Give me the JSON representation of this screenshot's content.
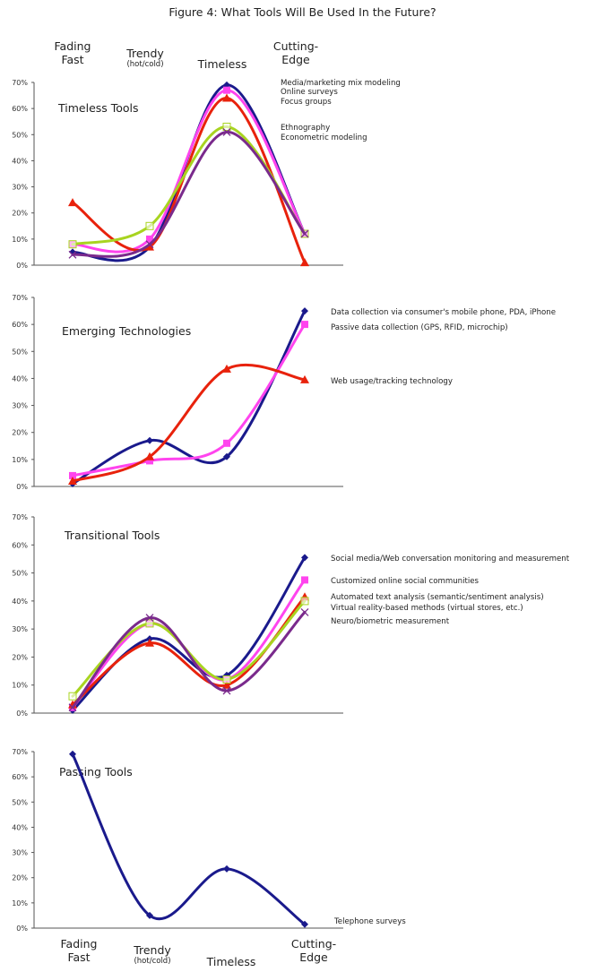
{
  "figure_title": "Figure 4: What Tools Will Be Used In the Future?",
  "categories": [
    {
      "main": "Fading\nFast",
      "sub": ""
    },
    {
      "main": "Trendy",
      "sub": "(hot/cold)"
    },
    {
      "main": "Timeless",
      "sub": ""
    },
    {
      "main": "Cutting-\nEdge",
      "sub": ""
    }
  ],
  "colors": {
    "navy": "#1a1a8c",
    "magenta": "#ff44ee",
    "red": "#e8220c",
    "lime": "#a8d420",
    "purple": "#7a2a8c"
  },
  "chart_data": [
    {
      "type": "line",
      "title": "Timeless Tools",
      "categories": [
        "Fading Fast",
        "Trendy (hot/cold)",
        "Timeless",
        "Cutting-Edge"
      ],
      "ylim": [
        0,
        70
      ],
      "yticks": [
        "0%",
        "10%",
        "20%",
        "30%",
        "40%",
        "50%",
        "60%",
        "70%"
      ],
      "series": [
        {
          "name": "Media/marketing mix modeling",
          "color": "#1a1a8c",
          "marker": "diamond",
          "values": [
            5,
            7,
            69,
            12
          ]
        },
        {
          "name": "Online surveys",
          "color": "#ff44ee",
          "marker": "square",
          "values": [
            8,
            10,
            67,
            12
          ]
        },
        {
          "name": "Focus groups",
          "color": "#e8220c",
          "marker": "triangle",
          "values": [
            24,
            7,
            64,
            1
          ]
        },
        {
          "name": "Ethnography",
          "color": "#a8d420",
          "marker": "open-square",
          "values": [
            8,
            15,
            53,
            12
          ]
        },
        {
          "name": "Econometric modeling",
          "color": "#7a2a8c",
          "marker": "x",
          "values": [
            4,
            8,
            51,
            12
          ]
        }
      ],
      "legend": [
        "Media/marketing mix modeling",
        "Online surveys",
        "Focus groups",
        "Ethnography",
        "Econometric modeling"
      ]
    },
    {
      "type": "line",
      "title": "Emerging Technologies",
      "categories": [
        "Fading Fast",
        "Trendy (hot/cold)",
        "Timeless",
        "Cutting-Edge"
      ],
      "ylim": [
        0,
        70
      ],
      "yticks": [
        "0%",
        "10%",
        "20%",
        "30%",
        "40%",
        "50%",
        "60%",
        "70%"
      ],
      "series": [
        {
          "name": "Data collection via consumer's mobile phone, PDA, iPhone",
          "color": "#1a1a8c",
          "marker": "diamond",
          "values": [
            1,
            17,
            11,
            65
          ]
        },
        {
          "name": "Passive data collection (GPS, RFID, microchip)",
          "color": "#ff44ee",
          "marker": "square",
          "values": [
            4,
            9.5,
            16,
            60
          ]
        },
        {
          "name": "Web usage/tracking technology",
          "color": "#e8220c",
          "marker": "triangle",
          "values": [
            2,
            11,
            43.5,
            39.5
          ]
        }
      ],
      "legend": [
        "Data collection via consumer's mobile phone, PDA, iPhone",
        "Passive data collection (GPS, RFID, microchip)",
        "Web usage/tracking technology"
      ]
    },
    {
      "type": "line",
      "title": "Transitional Tools",
      "categories": [
        "Fading Fast",
        "Trendy (hot/cold)",
        "Timeless",
        "Cutting-Edge"
      ],
      "ylim": [
        0,
        70
      ],
      "yticks": [
        "0%",
        "10%",
        "20%",
        "30%",
        "40%",
        "50%",
        "60%",
        "70%"
      ],
      "series": [
        {
          "name": "Social media/Web conversation monitoring and measurement",
          "color": "#1a1a8c",
          "marker": "diamond",
          "values": [
            1,
            26.5,
            13.5,
            55.5
          ]
        },
        {
          "name": "Customized online social communities",
          "color": "#ff44ee",
          "marker": "square",
          "values": [
            2,
            32,
            12,
            47.5
          ]
        },
        {
          "name": "Automated text analysis (semantic/sentiment analysis)",
          "color": "#e8220c",
          "marker": "triangle",
          "values": [
            3,
            25,
            10,
            41.5
          ]
        },
        {
          "name": "Virtual reality-based methods (virtual stores, etc.)",
          "color": "#a8d420",
          "marker": "open-square",
          "values": [
            6,
            32,
            12,
            40
          ]
        },
        {
          "name": "Neuro/biometric measurement",
          "color": "#7a2a8c",
          "marker": "x",
          "values": [
            2,
            34,
            8,
            36
          ]
        }
      ],
      "legend": [
        "Social media/Web conversation monitoring and measurement",
        "Customized online social communities",
        "Automated text analysis (semantic/sentiment analysis)",
        "Virtual reality-based methods (virtual stores, etc.)",
        "Neuro/biometric measurement"
      ]
    },
    {
      "type": "line",
      "title": "Passing Tools",
      "categories": [
        "Fading Fast",
        "Trendy (hot/cold)",
        "Timeless",
        "Cutting-Edge"
      ],
      "ylim": [
        0,
        70
      ],
      "yticks": [
        "0%",
        "10%",
        "20%",
        "30%",
        "40%",
        "50%",
        "60%",
        "70%"
      ],
      "series": [
        {
          "name": "Telephone surveys",
          "color": "#1a1a8c",
          "marker": "diamond",
          "values": [
            69,
            5,
            23.5,
            1.5
          ]
        }
      ],
      "legend": [
        "Telephone surveys"
      ]
    }
  ]
}
